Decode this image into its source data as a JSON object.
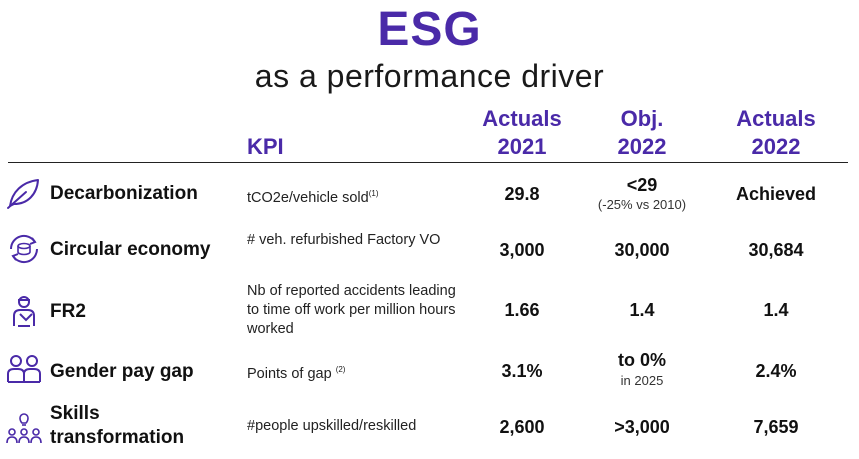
{
  "header": {
    "title": "ESG",
    "subtitle": "as a performance driver"
  },
  "columns": {
    "kpi": "KPI",
    "col1_line1": "Actuals",
    "col1_line2": "2021",
    "col2_line1": "Obj.",
    "col2_line2": "2022",
    "col3_line1": "Actuals",
    "col3_line2": "2022"
  },
  "rows": [
    {
      "icon": "leaf-icon",
      "label": "Decarbonization",
      "kpi_main": "tCO2e/vehicle sold",
      "kpi_note": "(1)",
      "actual_2021": "29.8",
      "objective_2022": "<29",
      "objective_note": "(-25% vs 2010)",
      "actual_2022": "Achieved"
    },
    {
      "icon": "recycle-coin-icon",
      "label": "Circular economy",
      "kpi_main": "# veh. refurbished Factory VO",
      "actual_2021": "3,000",
      "objective_2022": "30,000",
      "actual_2022": "30,684"
    },
    {
      "icon": "worker-icon",
      "label": "FR2",
      "kpi_main": "Nb of reported accidents leading to time off work per million hours worked",
      "actual_2021": "1.66",
      "objective_2022": "1.4",
      "actual_2022": "1.4"
    },
    {
      "icon": "people-pair-icon",
      "label": "Gender pay gap",
      "kpi_main": "Points of gap",
      "kpi_note": "(2)",
      "actual_2021": "3.1%",
      "objective_2022": "to 0%",
      "objective_note": "in 2025",
      "actual_2022": "2.4%"
    },
    {
      "icon": "lightbulb-group-icon",
      "label_line1": "Skills",
      "label_line2": "transformation",
      "kpi_main": "#people upskilled/reskilled",
      "actual_2021": "2,600",
      "objective_2022": ">3,000",
      "actual_2022": "7,659"
    }
  ],
  "colors": {
    "accent": "#4a2aa8",
    "text": "#111111"
  }
}
